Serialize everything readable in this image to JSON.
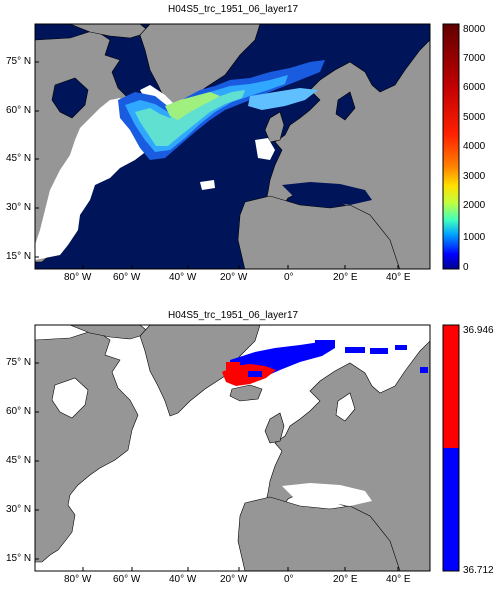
{
  "panels": [
    {
      "title": "H04S5_trc_1951_06_layer17",
      "lat_ticks": [
        "75° N",
        "60° N",
        "45° N",
        "30° N",
        "15° N"
      ],
      "lon_ticks": [
        "80° W",
        "60° W",
        "40° W",
        "20° W",
        "0°",
        "20° E",
        "40° E"
      ],
      "colorbar": {
        "type": "continuous",
        "colors": [
          "#000090",
          "#0040ff",
          "#00c8ff",
          "#80ff80",
          "#ffff00",
          "#ff8000",
          "#ff0000",
          "#800000"
        ],
        "range": [
          0,
          8000
        ],
        "ticks": [
          "8000",
          "7000",
          "6000",
          "5000",
          "4000",
          "3000",
          "2000",
          "1000",
          "0"
        ]
      },
      "colors": {
        "ocean": "#00145a",
        "land": "#969696",
        "nodata": "#ffffff"
      }
    },
    {
      "title": "H04S5_trc_1951_06_layer17",
      "lat_ticks": [
        "75° N",
        "60° N",
        "45° N",
        "30° N",
        "15° N"
      ],
      "lon_ticks": [
        "80° W",
        "60° W",
        "40° W",
        "20° W",
        "0°",
        "20° E",
        "40° E"
      ],
      "colorbar": {
        "type": "two-class",
        "colors": [
          "#ff0000",
          "#0000ff"
        ],
        "ticks": [
          "36.946",
          "36.712"
        ]
      },
      "colors": {
        "ocean": "#ffffff",
        "land": "#969696",
        "high": "#ff0000",
        "low": "#0000ff"
      }
    }
  ]
}
